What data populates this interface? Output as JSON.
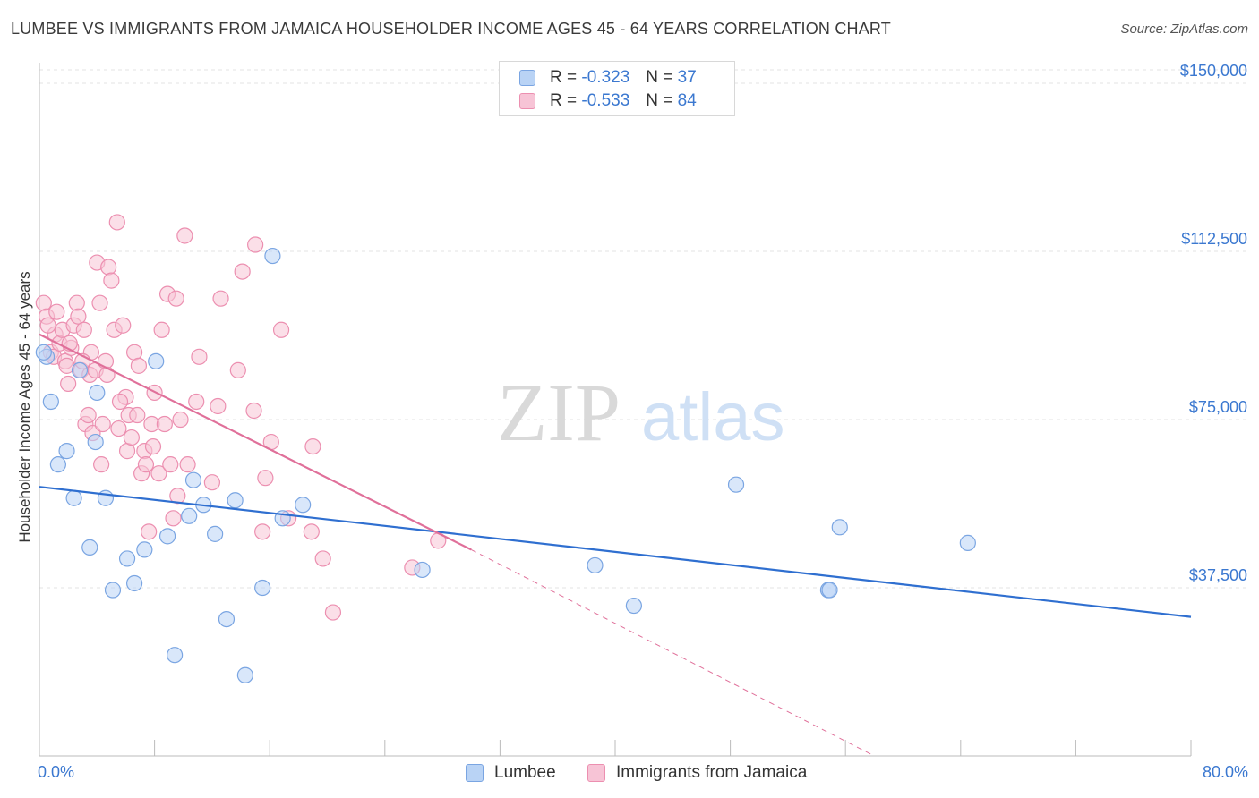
{
  "title": "LUMBEE VS IMMIGRANTS FROM JAMAICA HOUSEHOLDER INCOME AGES 45 - 64 YEARS CORRELATION CHART",
  "source": "Source: ZipAtlas.com",
  "watermark": {
    "zip": "ZIP",
    "atlas": "atlas"
  },
  "colors": {
    "lumbee_fill": "#b9d3f5",
    "lumbee_stroke": "#7aa5e2",
    "lumbee_line": "#2f6fd0",
    "jamaica_fill": "#f7c4d6",
    "jamaica_stroke": "#ec8fb0",
    "jamaica_line": "#e0709a",
    "axis_label": "#3b78d0",
    "grid": "#e3e3e3"
  },
  "legend": {
    "rows": [
      {
        "r_label": "R =",
        "r_value": "-0.323",
        "n_label": "N =",
        "n_value": "37"
      },
      {
        "r_label": "R =",
        "r_value": "-0.533",
        "n_label": "N =",
        "n_value": "84"
      }
    ]
  },
  "bottom_legend": {
    "lumbee": "Lumbee",
    "jamaica": "Immigrants from Jamaica"
  },
  "chart_data": {
    "type": "scatter",
    "title": "LUMBEE VS IMMIGRANTS FROM JAMAICA HOUSEHOLDER INCOME AGES 45 - 64 YEARS CORRELATION CHART",
    "xlabel": "",
    "ylabel": "Householder Income Ages 45 - 64 years",
    "xlim": [
      0,
      80
    ],
    "ylim": [
      0,
      153000
    ],
    "x_tick_labels": [
      "0.0%",
      "80.0%"
    ],
    "y_ticks": [
      37500,
      75000,
      112500,
      150000
    ],
    "y_tick_labels": [
      "$37,500",
      "$75,000",
      "$112,500",
      "$150,000"
    ],
    "grid": true,
    "legend_position": "top-center",
    "series": [
      {
        "name": "Lumbee",
        "points": [
          [
            0.5,
            89000
          ],
          [
            0.8,
            79000
          ],
          [
            1.3,
            65000
          ],
          [
            1.9,
            68000
          ],
          [
            2.4,
            57500
          ],
          [
            2.8,
            86000
          ],
          [
            3.5,
            46500
          ],
          [
            3.9,
            70000
          ],
          [
            4.0,
            81000
          ],
          [
            4.6,
            57500
          ],
          [
            5.1,
            37000
          ],
          [
            6.1,
            44000
          ],
          [
            6.6,
            38500
          ],
          [
            7.3,
            46000
          ],
          [
            8.1,
            88000
          ],
          [
            8.9,
            49000
          ],
          [
            9.4,
            22500
          ],
          [
            10.4,
            53500
          ],
          [
            10.7,
            61500
          ],
          [
            11.4,
            56000
          ],
          [
            12.2,
            49500
          ],
          [
            13.0,
            30500
          ],
          [
            13.6,
            57000
          ],
          [
            14.3,
            18000
          ],
          [
            15.5,
            37500
          ],
          [
            16.2,
            111500
          ],
          [
            16.9,
            53000
          ],
          [
            18.3,
            56000
          ],
          [
            26.6,
            41500
          ],
          [
            38.6,
            42500
          ],
          [
            41.3,
            33500
          ],
          [
            48.4,
            60500
          ],
          [
            54.8,
            37000
          ],
          [
            54.9,
            37000
          ],
          [
            55.6,
            51000
          ],
          [
            64.5,
            47500
          ],
          [
            0.3,
            90000
          ]
        ],
        "trend": {
          "x": [
            0,
            80
          ],
          "y": [
            60000,
            31000
          ]
        }
      },
      {
        "name": "Immigrants from Jamaica",
        "points": [
          [
            0.3,
            101000
          ],
          [
            0.5,
            98000
          ],
          [
            0.8,
            90000
          ],
          [
            1.0,
            89000
          ],
          [
            1.1,
            94000
          ],
          [
            1.4,
            92000
          ],
          [
            1.6,
            95000
          ],
          [
            1.8,
            88000
          ],
          [
            1.9,
            87000
          ],
          [
            2.0,
            83000
          ],
          [
            2.2,
            91000
          ],
          [
            2.4,
            96000
          ],
          [
            2.6,
            101000
          ],
          [
            2.7,
            98000
          ],
          [
            2.9,
            86000
          ],
          [
            3.1,
            95000
          ],
          [
            3.2,
            74000
          ],
          [
            3.4,
            76000
          ],
          [
            3.5,
            85000
          ],
          [
            3.6,
            90000
          ],
          [
            3.7,
            72000
          ],
          [
            3.9,
            86000
          ],
          [
            4.0,
            110000
          ],
          [
            4.2,
            101000
          ],
          [
            4.3,
            65000
          ],
          [
            4.4,
            74000
          ],
          [
            4.6,
            88000
          ],
          [
            4.8,
            109000
          ],
          [
            5.0,
            106000
          ],
          [
            5.2,
            95000
          ],
          [
            5.4,
            119000
          ],
          [
            5.5,
            73000
          ],
          [
            5.8,
            96000
          ],
          [
            6.0,
            80000
          ],
          [
            6.1,
            68000
          ],
          [
            6.2,
            76000
          ],
          [
            6.4,
            71000
          ],
          [
            6.6,
            90000
          ],
          [
            6.9,
            87000
          ],
          [
            7.1,
            63000
          ],
          [
            7.3,
            68000
          ],
          [
            7.4,
            65000
          ],
          [
            7.6,
            50000
          ],
          [
            7.8,
            74000
          ],
          [
            8.0,
            81000
          ],
          [
            8.3,
            63000
          ],
          [
            8.5,
            95000
          ],
          [
            8.7,
            74000
          ],
          [
            8.9,
            103000
          ],
          [
            9.1,
            65000
          ],
          [
            9.3,
            53000
          ],
          [
            9.5,
            102000
          ],
          [
            9.8,
            75000
          ],
          [
            10.1,
            116000
          ],
          [
            10.3,
            65000
          ],
          [
            10.9,
            79000
          ],
          [
            11.1,
            89000
          ],
          [
            12.4,
            78000
          ],
          [
            12.6,
            102000
          ],
          [
            13.8,
            86000
          ],
          [
            14.1,
            108000
          ],
          [
            14.9,
            77000
          ],
          [
            15.0,
            114000
          ],
          [
            15.5,
            50000
          ],
          [
            15.7,
            62000
          ],
          [
            16.1,
            70000
          ],
          [
            16.8,
            95000
          ],
          [
            17.3,
            53000
          ],
          [
            18.9,
            50000
          ],
          [
            19.0,
            69000
          ],
          [
            19.7,
            44000
          ],
          [
            20.4,
            32000
          ],
          [
            25.9,
            42000
          ],
          [
            27.7,
            48000
          ],
          [
            0.6,
            96000
          ],
          [
            1.2,
            99000
          ],
          [
            2.1,
            92000
          ],
          [
            3.0,
            88000
          ],
          [
            4.7,
            85000
          ],
          [
            5.6,
            79000
          ],
          [
            6.8,
            76000
          ],
          [
            7.9,
            69000
          ],
          [
            9.6,
            58000
          ],
          [
            12.0,
            61000
          ]
        ],
        "trend": {
          "x": [
            0,
            30
          ],
          "y": [
            94000,
            46000
          ]
        },
        "trend_extension": {
          "x": [
            30,
            58
          ],
          "y": [
            46000,
            0
          ]
        }
      }
    ]
  }
}
